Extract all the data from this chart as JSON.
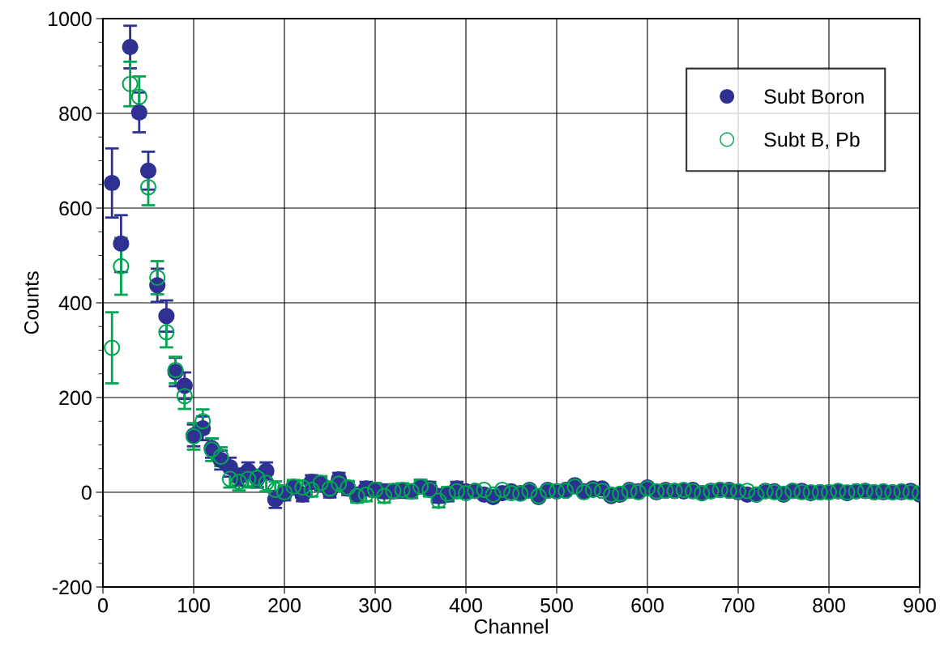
{
  "chart_data": {
    "type": "scatter",
    "xlabel": "Channel",
    "ylabel": "Counts",
    "x": [
      10,
      20,
      30,
      40,
      50,
      60,
      70,
      80,
      90,
      100,
      110,
      120,
      130,
      140,
      150,
      160,
      170,
      180,
      190,
      200,
      210,
      220,
      230,
      240,
      250,
      260,
      270,
      280,
      290,
      300,
      310,
      320,
      330,
      340,
      350,
      360,
      370,
      380,
      390,
      400,
      410,
      420,
      430,
      440,
      450,
      460,
      470,
      480,
      490,
      500,
      510,
      520,
      530,
      540,
      550,
      560,
      570,
      580,
      590,
      600,
      610,
      620,
      630,
      640,
      650,
      660,
      670,
      680,
      690,
      700,
      710,
      720,
      730,
      740,
      750,
      760,
      770,
      780,
      790,
      800,
      810,
      820,
      830,
      840,
      850,
      860,
      870,
      880,
      890,
      900
    ],
    "series": [
      {
        "name": "Subt Boron",
        "color": "#2e3192",
        "values": [
          653,
          525,
          940,
          802,
          679,
          437,
          372,
          254,
          225,
          120,
          135,
          93,
          68,
          53,
          32,
          45,
          28,
          45,
          -15,
          -3,
          10,
          -5,
          22,
          18,
          3,
          27,
          8,
          -5,
          8,
          5,
          2,
          2,
          3,
          2,
          12,
          8,
          -8,
          -5,
          8,
          2,
          3,
          -5,
          -10,
          -2,
          2,
          -2,
          5,
          -10,
          5,
          2,
          5,
          15,
          2,
          8,
          8,
          -8,
          -5,
          5,
          2,
          10,
          0,
          5,
          3,
          2,
          5,
          -2,
          3,
          5,
          5,
          0,
          -5,
          -5,
          3,
          2,
          -5,
          3,
          3,
          -2,
          0,
          0,
          2,
          -2,
          2,
          3,
          0,
          0,
          0,
          0,
          3,
          -5
        ],
        "errors": [
          73,
          60,
          45,
          42,
          40,
          35,
          33,
          30,
          28,
          23,
          25,
          20,
          20,
          20,
          18,
          18,
          18,
          18,
          18,
          14,
          14,
          14,
          14,
          14,
          14,
          14,
          14,
          14,
          14,
          14,
          14,
          14,
          14,
          14,
          14,
          14,
          14,
          14,
          14,
          null,
          null,
          null,
          null,
          null,
          null,
          null,
          null,
          null,
          null,
          null,
          null,
          null,
          null,
          null,
          null,
          null,
          null,
          null,
          null,
          null,
          null,
          null,
          null,
          null,
          null,
          null,
          null,
          null,
          null,
          null,
          null,
          null,
          null,
          null,
          null,
          null,
          null,
          null,
          null,
          null,
          null,
          null,
          null,
          null,
          null,
          null,
          null,
          null,
          null,
          null
        ]
      },
      {
        "name": "Subt B, Pb",
        "color": "#00a651",
        "values": [
          305,
          477,
          862,
          835,
          644,
          453,
          338,
          258,
          203,
          118,
          150,
          90,
          75,
          28,
          22,
          28,
          30,
          20,
          5,
          0,
          12,
          10,
          5,
          20,
          8,
          18,
          10,
          -8,
          -5,
          5,
          -8,
          3,
          5,
          2,
          12,
          5,
          -18,
          -3,
          2,
          -2,
          3,
          5,
          -5,
          5,
          -2,
          -3,
          3,
          -8,
          3,
          2,
          3,
          12,
          0,
          5,
          3,
          -5,
          -3,
          3,
          0,
          8,
          2,
          3,
          3,
          5,
          2,
          -2,
          2,
          5,
          3,
          2,
          3,
          -5,
          2,
          0,
          -3,
          3,
          0,
          0,
          0,
          0,
          3,
          0,
          2,
          3,
          0,
          2,
          0,
          2,
          0,
          -2
        ],
        "errors": [
          75,
          60,
          47,
          43,
          38,
          35,
          32,
          28,
          27,
          28,
          25,
          24,
          20,
          18,
          18,
          18,
          18,
          18,
          18,
          14,
          14,
          14,
          14,
          14,
          14,
          14,
          14,
          14,
          14,
          14,
          14,
          14,
          14,
          14,
          14,
          14,
          14,
          14,
          14,
          null,
          null,
          null,
          null,
          null,
          null,
          null,
          null,
          null,
          null,
          null,
          null,
          null,
          null,
          null,
          null,
          null,
          null,
          null,
          null,
          null,
          null,
          null,
          null,
          null,
          null,
          null,
          null,
          null,
          null,
          null,
          null,
          null,
          null,
          null,
          null,
          null,
          null,
          null,
          null,
          null,
          null,
          null,
          null,
          null,
          null,
          null,
          null,
          null,
          null,
          null
        ]
      }
    ],
    "xlim": [
      0,
      900
    ],
    "xticks": [
      0,
      100,
      200,
      300,
      400,
      500,
      600,
      700,
      800,
      900
    ],
    "ylim": [
      -200,
      1000
    ],
    "yticks": [
      -200,
      0,
      200,
      400,
      600,
      800,
      1000
    ],
    "grid": true,
    "legend": "top right",
    "marker": "circle"
  }
}
